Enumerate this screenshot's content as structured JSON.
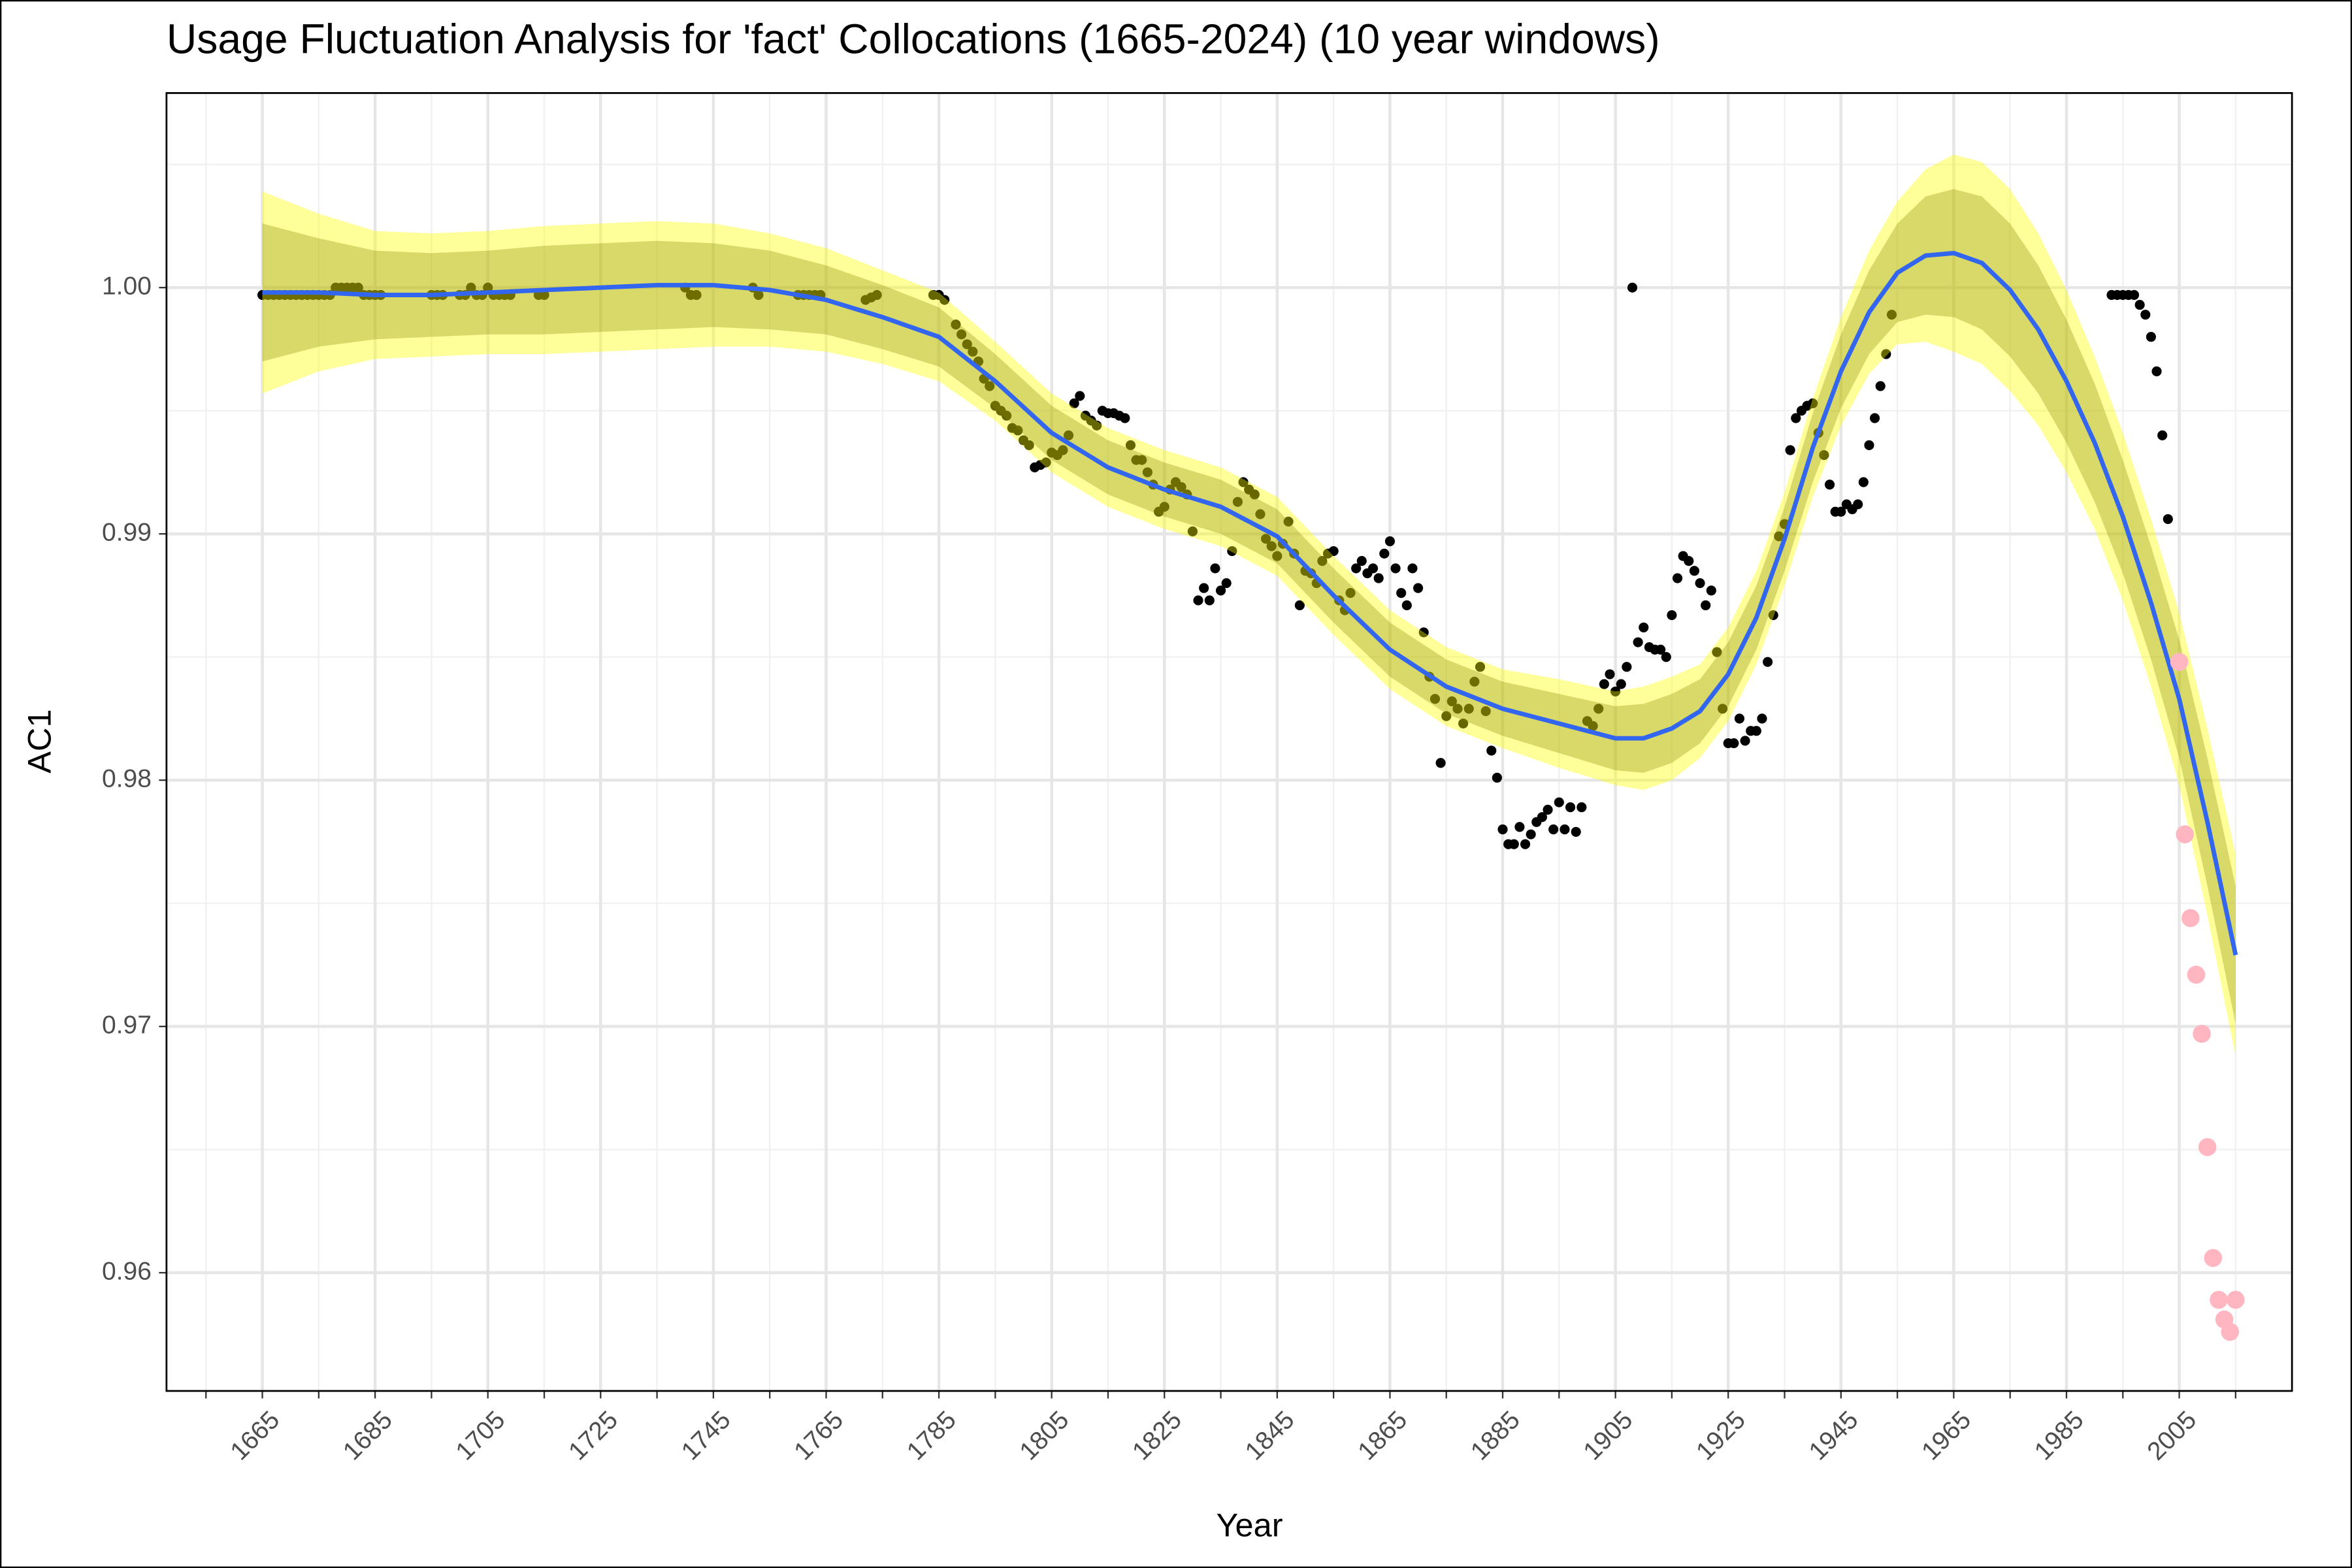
{
  "chart_data": {
    "type": "scatter",
    "title": "Usage Fluctuation Analysis for 'fact' Collocations (1665-2024) (10 year windows)",
    "x_label": "Year",
    "y_label": "AC1",
    "xlim": [
      1648,
      2025
    ],
    "ylim": [
      0.9552,
      1.0079
    ],
    "xticks": [
      1665,
      1685,
      1705,
      1725,
      1745,
      1765,
      1785,
      1805,
      1825,
      1845,
      1865,
      1885,
      1905,
      1925,
      1945,
      1965,
      1985,
      2005
    ],
    "yticks": [
      0.96,
      0.97,
      0.98,
      0.99,
      {
        "value": 1,
        "label": "1.00"
      }
    ],
    "grid": true,
    "series": [
      {
        "color": "#000000",
        "x": [
          1665,
          1666,
          1667,
          1668,
          1669,
          1670,
          1671,
          1672,
          1673,
          1674,
          1675,
          1676,
          1677,
          1678,
          1679,
          1680,
          1681,
          1682,
          1683,
          1684,
          1685,
          1686,
          1695,
          1696,
          1697,
          1700,
          1701,
          1702,
          1703,
          1704,
          1705,
          1706,
          1707,
          1708,
          1709,
          1714,
          1715,
          1740,
          1741,
          1742,
          1752,
          1753,
          1760,
          1761,
          1762,
          1763,
          1764,
          1772,
          1773,
          1774,
          1784,
          1785,
          1786,
          1788,
          1789,
          1790,
          1791,
          1792,
          1793,
          1794,
          1795,
          1796,
          1797,
          1798,
          1799,
          1800,
          1801,
          1802,
          1803,
          1804,
          1805,
          1806,
          1807,
          1808,
          1809,
          1810,
          1811,
          1812,
          1813,
          1814,
          1815,
          1816,
          1817,
          1818,
          1819,
          1820,
          1821,
          1822,
          1823,
          1824,
          1825,
          1826,
          1827,
          1828,
          1829,
          1830,
          1831,
          1832,
          1833,
          1834,
          1835,
          1836,
          1837,
          1838,
          1839,
          1840,
          1841,
          1842,
          1843,
          1844,
          1845,
          1846,
          1847,
          1848,
          1849,
          1850,
          1851,
          1852,
          1853,
          1854,
          1855,
          1856,
          1857,
          1858,
          1859,
          1860,
          1861,
          1862,
          1863,
          1864,
          1865,
          1866,
          1867,
          1868,
          1869,
          1870,
          1871,
          1872,
          1873,
          1874,
          1875,
          1876,
          1877,
          1878,
          1879,
          1880,
          1881,
          1882,
          1883,
          1884,
          1885,
          1886,
          1887,
          1888,
          1889,
          1890,
          1891,
          1892,
          1893,
          1894,
          1895,
          1896,
          1897,
          1898,
          1899,
          1900,
          1901,
          1902,
          1903,
          1904,
          1905,
          1906,
          1907,
          1908,
          1909,
          1910,
          1911,
          1912,
          1913,
          1914,
          1915,
          1916,
          1917,
          1918,
          1919,
          1920,
          1921,
          1922,
          1923,
          1924,
          1925,
          1926,
          1927,
          1928,
          1929,
          1930,
          1931,
          1932,
          1933,
          1934,
          1935,
          1936,
          1937,
          1938,
          1939,
          1940,
          1941,
          1942,
          1943,
          1944,
          1945,
          1946,
          1947,
          1948,
          1949,
          1950,
          1951,
          1952,
          1953,
          1954,
          1993,
          1994,
          1995,
          1996,
          1997,
          1998,
          1999,
          2000,
          2001,
          2002,
          2003
        ],
        "values": [
          0.9997,
          0.9997,
          0.9997,
          0.9997,
          0.9997,
          0.9997,
          0.9997,
          0.9997,
          0.9997,
          0.9997,
          0.9997,
          0.9997,
          0.9997,
          1,
          1,
          1,
          1,
          1,
          0.9997,
          0.9997,
          0.9997,
          0.9997,
          0.9997,
          0.9997,
          0.9997,
          0.9997,
          0.9997,
          1,
          0.9997,
          0.9997,
          1,
          0.9997,
          0.9997,
          0.9997,
          0.9997,
          0.9997,
          0.9997,
          1,
          0.9997,
          0.9997,
          1,
          0.9997,
          0.9997,
          0.9997,
          0.9997,
          0.9997,
          0.9997,
          0.9995,
          0.9996,
          0.9997,
          0.9997,
          0.9997,
          0.9995,
          0.9985,
          0.9981,
          0.9977,
          0.9974,
          0.997,
          0.9963,
          0.996,
          0.9952,
          0.995,
          0.9948,
          0.9943,
          0.9942,
          0.9938,
          0.9936,
          0.9927,
          0.9928,
          0.9929,
          0.9933,
          0.9932,
          0.9934,
          0.994,
          0.9953,
          0.9956,
          0.9948,
          0.9946,
          0.9944,
          0.995,
          0.9949,
          0.9949,
          0.9948,
          0.9947,
          0.9936,
          0.993,
          0.993,
          0.9925,
          0.992,
          0.9909,
          0.9911,
          0.9918,
          0.9921,
          0.9919,
          0.9916,
          0.9901,
          0.9873,
          0.9878,
          0.9873,
          0.9886,
          0.9877,
          0.988,
          0.9893,
          0.9913,
          0.9921,
          0.9918,
          0.9916,
          0.9908,
          0.9898,
          0.9895,
          0.9891,
          0.9896,
          0.9905,
          0.9892,
          0.9871,
          0.9885,
          0.9884,
          0.988,
          0.9889,
          0.9892,
          0.9893,
          0.9873,
          0.9869,
          0.9876,
          0.9886,
          0.9889,
          0.9884,
          0.9886,
          0.9882,
          0.9892,
          0.9897,
          0.9886,
          0.9876,
          0.9871,
          0.9886,
          0.9878,
          0.986,
          0.9842,
          0.9833,
          0.9807,
          0.9826,
          0.9832,
          0.9829,
          0.9823,
          0.9829,
          0.984,
          0.9846,
          0.9828,
          0.9812,
          0.9801,
          0.978,
          0.9774,
          0.9774,
          0.9781,
          0.9774,
          0.9778,
          0.9783,
          0.9785,
          0.9788,
          0.978,
          0.9791,
          0.978,
          0.9789,
          0.9779,
          0.9789,
          0.9824,
          0.9822,
          0.9829,
          0.9839,
          0.9843,
          0.9836,
          0.9839,
          0.9846,
          1,
          0.9856,
          0.9862,
          0.9854,
          0.9853,
          0.9853,
          0.985,
          0.9867,
          0.9882,
          0.9891,
          0.9889,
          0.9885,
          0.988,
          0.9871,
          0.9877,
          0.9852,
          0.9829,
          0.9815,
          0.9815,
          0.9825,
          0.9816,
          0.982,
          0.982,
          0.9825,
          0.9848,
          0.9867,
          0.9899,
          0.9904,
          0.9934,
          0.9947,
          0.995,
          0.9952,
          0.9953,
          0.9941,
          0.9932,
          0.992,
          0.9909,
          0.9909,
          0.9912,
          0.991,
          0.9912,
          0.9921,
          0.9936,
          0.9947,
          0.996,
          0.9973,
          0.9989,
          0.9997,
          0.9997,
          0.9997,
          0.9997,
          0.9997,
          0.9993,
          0.9989,
          0.998,
          0.9966,
          0.994,
          0.9906
        ]
      },
      {
        "color": "#ffb6c1",
        "x": [
          2005,
          2006,
          2007,
          2008,
          2009,
          2010,
          2011,
          2012,
          2013,
          2014,
          2015
        ],
        "values": [
          0.9848,
          0.9778,
          0.9744,
          0.9721,
          0.9697,
          0.9651,
          0.9606,
          0.9589,
          0.9581,
          0.9576,
          0.9589
        ]
      }
    ],
    "smooth": {
      "color": "#3366ee",
      "x": [
        1665,
        1675,
        1685,
        1695,
        1705,
        1715,
        1725,
        1735,
        1745,
        1755,
        1765,
        1775,
        1785,
        1795,
        1805,
        1815,
        1825,
        1835,
        1845,
        1855,
        1865,
        1875,
        1885,
        1895,
        1905,
        1910,
        1915,
        1920,
        1925,
        1930,
        1935,
        1940,
        1945,
        1950,
        1955,
        1960,
        1965,
        1970,
        1975,
        1980,
        1985,
        1990,
        1995,
        2000,
        2005,
        2010,
        2015
      ],
      "values": [
        0.9998,
        0.9998,
        0.9997,
        0.9997,
        0.9998,
        0.9999,
        1,
        1.0001,
        1.0001,
        0.9999,
        0.9995,
        0.9988,
        0.998,
        0.9962,
        0.9941,
        0.9927,
        0.9918,
        0.9911,
        0.9899,
        0.9875,
        0.9853,
        0.9838,
        0.9829,
        0.9823,
        0.9817,
        0.9817,
        0.9821,
        0.9828,
        0.9843,
        0.9866,
        0.9898,
        0.9935,
        0.9966,
        0.999,
        1.0006,
        1.0013,
        1.0014,
        1.001,
        0.9999,
        0.9983,
        0.9962,
        0.9937,
        0.9907,
        0.9872,
        0.9833,
        0.9783,
        0.9729
      ]
    },
    "bands": [
      {
        "color": "#ffff00",
        "lower": [
          0.9957,
          0.9966,
          0.9971,
          0.9972,
          0.9973,
          0.9973,
          0.9974,
          0.9975,
          0.9976,
          0.9976,
          0.9974,
          0.9969,
          0.9962,
          0.9946,
          0.9925,
          0.9911,
          0.9902,
          0.9895,
          0.9883,
          0.9859,
          0.9837,
          0.9822,
          0.9813,
          0.9805,
          0.9798,
          0.9796,
          0.98,
          0.9809,
          0.9824,
          0.9847,
          0.9879,
          0.9915,
          0.9944,
          0.9965,
          0.9977,
          0.9978,
          0.9974,
          0.9969,
          0.9958,
          0.9944,
          0.9925,
          0.9902,
          0.9873,
          0.9838,
          0.9798,
          0.9745,
          0.9688
        ],
        "upper": [
          1.0039,
          1.003,
          1.0023,
          1.0022,
          1.0023,
          1.0025,
          1.0026,
          1.0027,
          1.0026,
          1.0022,
          1.0016,
          1.0007,
          0.9998,
          0.9978,
          0.9957,
          0.9943,
          0.9934,
          0.9927,
          0.9915,
          0.9891,
          0.9869,
          0.9854,
          0.9845,
          0.9841,
          0.9836,
          0.9838,
          0.9842,
          0.9847,
          0.9862,
          0.9885,
          0.9917,
          0.9955,
          0.9988,
          1.0015,
          1.0035,
          1.0048,
          1.0054,
          1.0051,
          1.004,
          1.0022,
          0.9999,
          0.9972,
          0.9941,
          0.9906,
          0.9868,
          0.9821,
          0.977
        ]
      },
      {
        "color": "#808000",
        "lower": [
          0.997,
          0.9976,
          0.9979,
          0.998,
          0.9981,
          0.9981,
          0.9982,
          0.9983,
          0.9984,
          0.9983,
          0.9981,
          0.9975,
          0.9968,
          0.9951,
          0.993,
          0.9916,
          0.9907,
          0.99,
          0.9888,
          0.9864,
          0.9842,
          0.9827,
          0.9818,
          0.9811,
          0.9804,
          0.9803,
          0.9807,
          0.9815,
          0.983,
          0.9853,
          0.9885,
          0.9921,
          0.9951,
          0.9973,
          0.9986,
          0.9989,
          0.9988,
          0.9983,
          0.9972,
          0.9957,
          0.9937,
          0.9913,
          0.9884,
          0.9849,
          0.9809,
          0.9757,
          0.9701
        ],
        "upper": [
          1.0026,
          1.002,
          1.0015,
          1.0014,
          1.0015,
          1.0017,
          1.0018,
          1.0019,
          1.0018,
          1.0015,
          1.0009,
          1.0001,
          0.9992,
          0.9973,
          0.9952,
          0.9938,
          0.9929,
          0.9922,
          0.991,
          0.9886,
          0.9864,
          0.9849,
          0.984,
          0.9835,
          0.983,
          0.9831,
          0.9835,
          0.9841,
          0.9856,
          0.9879,
          0.9911,
          0.9949,
          0.9981,
          1.0007,
          1.0026,
          1.0037,
          1.004,
          1.0037,
          1.0026,
          1.0009,
          0.9987,
          0.9961,
          0.993,
          0.9895,
          0.9857,
          0.9809,
          0.9757
        ]
      }
    ]
  }
}
